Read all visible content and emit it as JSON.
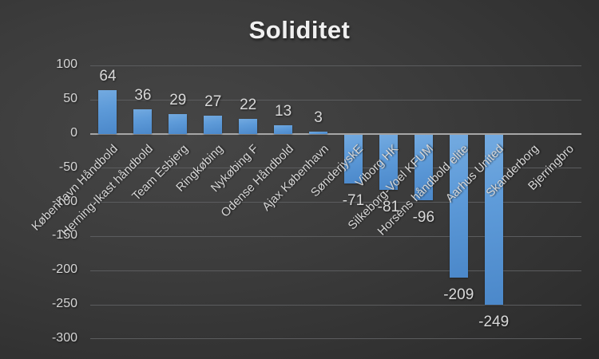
{
  "chart_data": {
    "type": "bar",
    "title": "Soliditet",
    "categories": [
      "København Håndbold",
      "Herning-Ikast håndbold",
      "Team Esbjerg",
      "Ringkøbing",
      "Nykøbing F",
      "Odense Håndbold",
      "Ajax København",
      "SønderjyskE",
      "Viborg HK",
      "Silkeborg-Voel KFUM",
      "Horsens håndbold elite",
      "Aarhus United",
      "Skanderborg",
      "Bjerringbro"
    ],
    "values": [
      64,
      36,
      29,
      27,
      22,
      13,
      3,
      -71,
      -81,
      -96,
      -209,
      -249,
      null,
      null
    ],
    "yticks": [
      100,
      50,
      0,
      -50,
      -100,
      -150,
      -200,
      -250,
      -300
    ],
    "ylim": [
      -300,
      100
    ],
    "xlabel": "",
    "ylabel": "",
    "grid": true,
    "legend": false,
    "category_label_rotation_deg": -45,
    "colors": {
      "bar_top": "#73AAE0",
      "bar_bottom": "#4B88CA",
      "gridline": "#5B5C5E",
      "zero_line": "#A6A6A6",
      "axis_text": "#D6D6D6",
      "value_label_text": "#D9D9D9",
      "title_text": "#F0F0F0",
      "background_center": "#464646",
      "background_edge": "#1D1D1D"
    }
  }
}
